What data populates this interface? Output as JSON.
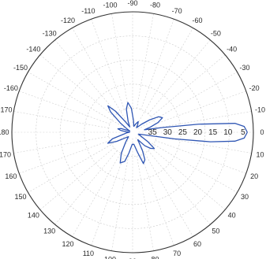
{
  "chart_data": {
    "type": "polar",
    "title": "",
    "angle_labels": [
      {
        "angle": -110,
        "label": "-110"
      },
      {
        "angle": -100,
        "label": "-100"
      },
      {
        "angle": -90,
        "label": "-90"
      },
      {
        "angle": -80,
        "label": "-80"
      },
      {
        "angle": -70,
        "label": "-70"
      },
      {
        "angle": -60,
        "label": "-60"
      },
      {
        "angle": -50,
        "label": "-50"
      },
      {
        "angle": -40,
        "label": "-40"
      },
      {
        "angle": -30,
        "label": "-30"
      },
      {
        "angle": -20,
        "label": "-20"
      },
      {
        "angle": -10,
        "label": "-10"
      },
      {
        "angle": 0,
        "label": "0"
      },
      {
        "angle": 10,
        "label": "10"
      },
      {
        "angle": 20,
        "label": "20"
      },
      {
        "angle": 30,
        "label": "30"
      },
      {
        "angle": 40,
        "label": "40"
      },
      {
        "angle": 50,
        "label": "50"
      },
      {
        "angle": 60,
        "label": "60"
      },
      {
        "angle": 70,
        "label": "70"
      },
      {
        "angle": 80,
        "label": "80"
      },
      {
        "angle": 90,
        "label": "90"
      },
      {
        "angle": 100,
        "label": "100"
      },
      {
        "angle": 110,
        "label": "110"
      },
      {
        "angle": 120,
        "label": "120"
      },
      {
        "angle": 130,
        "label": "130"
      },
      {
        "angle": 140,
        "label": "140"
      },
      {
        "angle": 150,
        "label": "150"
      },
      {
        "angle": 160,
        "label": "160"
      },
      {
        "angle": 170,
        "label": "170"
      },
      {
        "angle": 180,
        "label": "180"
      },
      {
        "angle": -170,
        "label": "-170"
      },
      {
        "angle": -160,
        "label": "-160"
      },
      {
        "angle": -150,
        "label": "-150"
      },
      {
        "angle": -140,
        "label": "-140"
      },
      {
        "angle": -130,
        "label": "-130"
      },
      {
        "angle": -120,
        "label": "-120"
      }
    ],
    "radial_axis": {
      "range": [
        0,
        40
      ],
      "direction": "reversed",
      "tick_values": [
        35,
        30,
        25,
        20,
        15,
        10,
        5
      ],
      "tick_labels": [
        "35",
        "30",
        "25",
        "20",
        "15",
        "10",
        "5"
      ]
    },
    "grid": true,
    "series": [
      {
        "color": "#2f56b4",
        "points": [
          [
            0,
            2
          ],
          [
            3,
            3
          ],
          [
            5,
            6
          ],
          [
            7,
            14
          ],
          [
            9,
            26
          ],
          [
            11,
            34
          ],
          [
            14,
            37
          ],
          [
            18,
            38
          ],
          [
            25,
            37
          ],
          [
            32,
            34
          ],
          [
            37,
            31
          ],
          [
            42,
            32
          ],
          [
            48,
            34
          ],
          [
            55,
            37
          ],
          [
            62,
            33
          ],
          [
            66,
            30
          ],
          [
            71,
            29
          ],
          [
            76,
            33
          ],
          [
            84,
            36
          ],
          [
            92,
            36
          ],
          [
            100,
            33
          ],
          [
            105,
            30
          ],
          [
            112,
            29
          ],
          [
            118,
            32
          ],
          [
            125,
            36
          ],
          [
            133,
            38
          ],
          [
            142,
            37
          ],
          [
            150,
            34
          ],
          [
            156,
            31
          ],
          [
            162,
            33
          ],
          [
            168,
            37
          ],
          [
            174,
            38
          ],
          [
            180,
            39
          ],
          [
            -176,
            38
          ],
          [
            -171,
            36
          ],
          [
            -167,
            35
          ],
          [
            -162,
            36
          ],
          [
            -157,
            39
          ],
          [
            -150,
            38
          ],
          [
            -143,
            35
          ],
          [
            -137,
            30
          ],
          [
            -133,
            28
          ],
          [
            -129,
            31
          ],
          [
            -124,
            36
          ],
          [
            -118,
            38
          ],
          [
            -112,
            36
          ],
          [
            -105,
            32
          ],
          [
            -99,
            30
          ],
          [
            -93,
            32
          ],
          [
            -86,
            36
          ],
          [
            -78,
            38
          ],
          [
            -69,
            37
          ],
          [
            -62,
            36
          ],
          [
            -56,
            37
          ],
          [
            -49,
            38
          ],
          [
            -42,
            36
          ],
          [
            -36,
            33
          ],
          [
            -31,
            30
          ],
          [
            -26,
            29
          ],
          [
            -21,
            31
          ],
          [
            -16,
            34
          ],
          [
            -12,
            36
          ],
          [
            -9,
            30
          ],
          [
            -7,
            18
          ],
          [
            -5,
            6
          ],
          [
            -3,
            3
          ],
          [
            0,
            2
          ]
        ]
      }
    ]
  }
}
